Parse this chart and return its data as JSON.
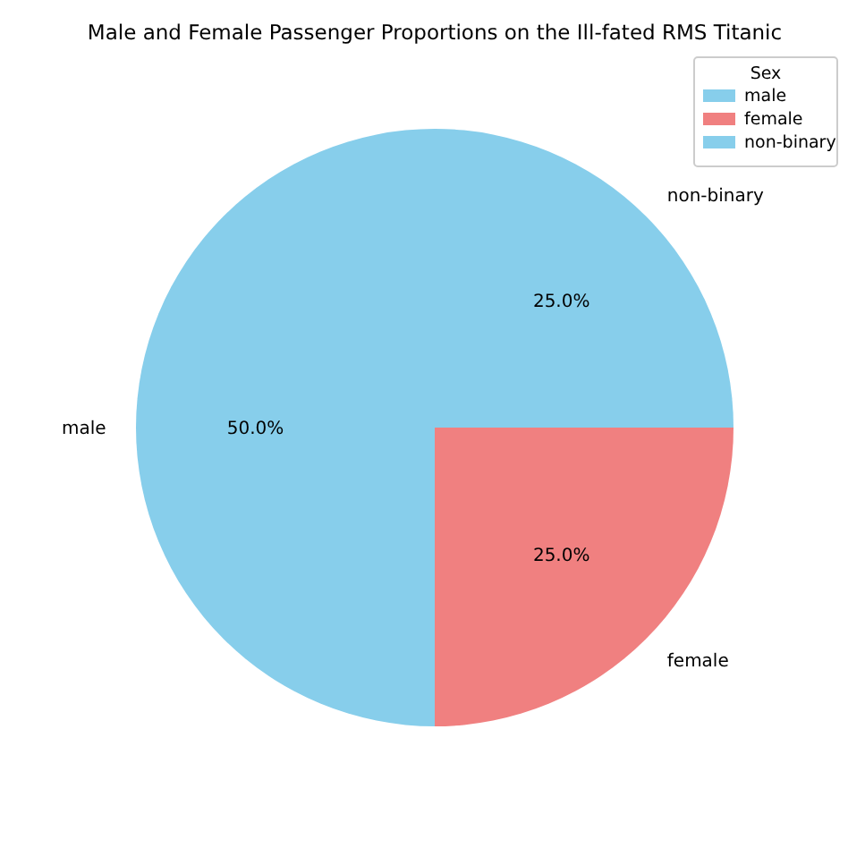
{
  "chart_data": {
    "type": "pie",
    "title": "Male and Female Passenger Proportions on the Ill-fated RMS Titanic",
    "categories": [
      "male",
      "female",
      "non-binary"
    ],
    "values": [
      50,
      25,
      25
    ],
    "colors": [
      "#87ceeb",
      "#f08080",
      "#87ceeb"
    ],
    "value_labels": [
      "50.0%",
      "25.0%",
      "25.0%"
    ],
    "legend_title": "Sex",
    "legend": "top right"
  }
}
